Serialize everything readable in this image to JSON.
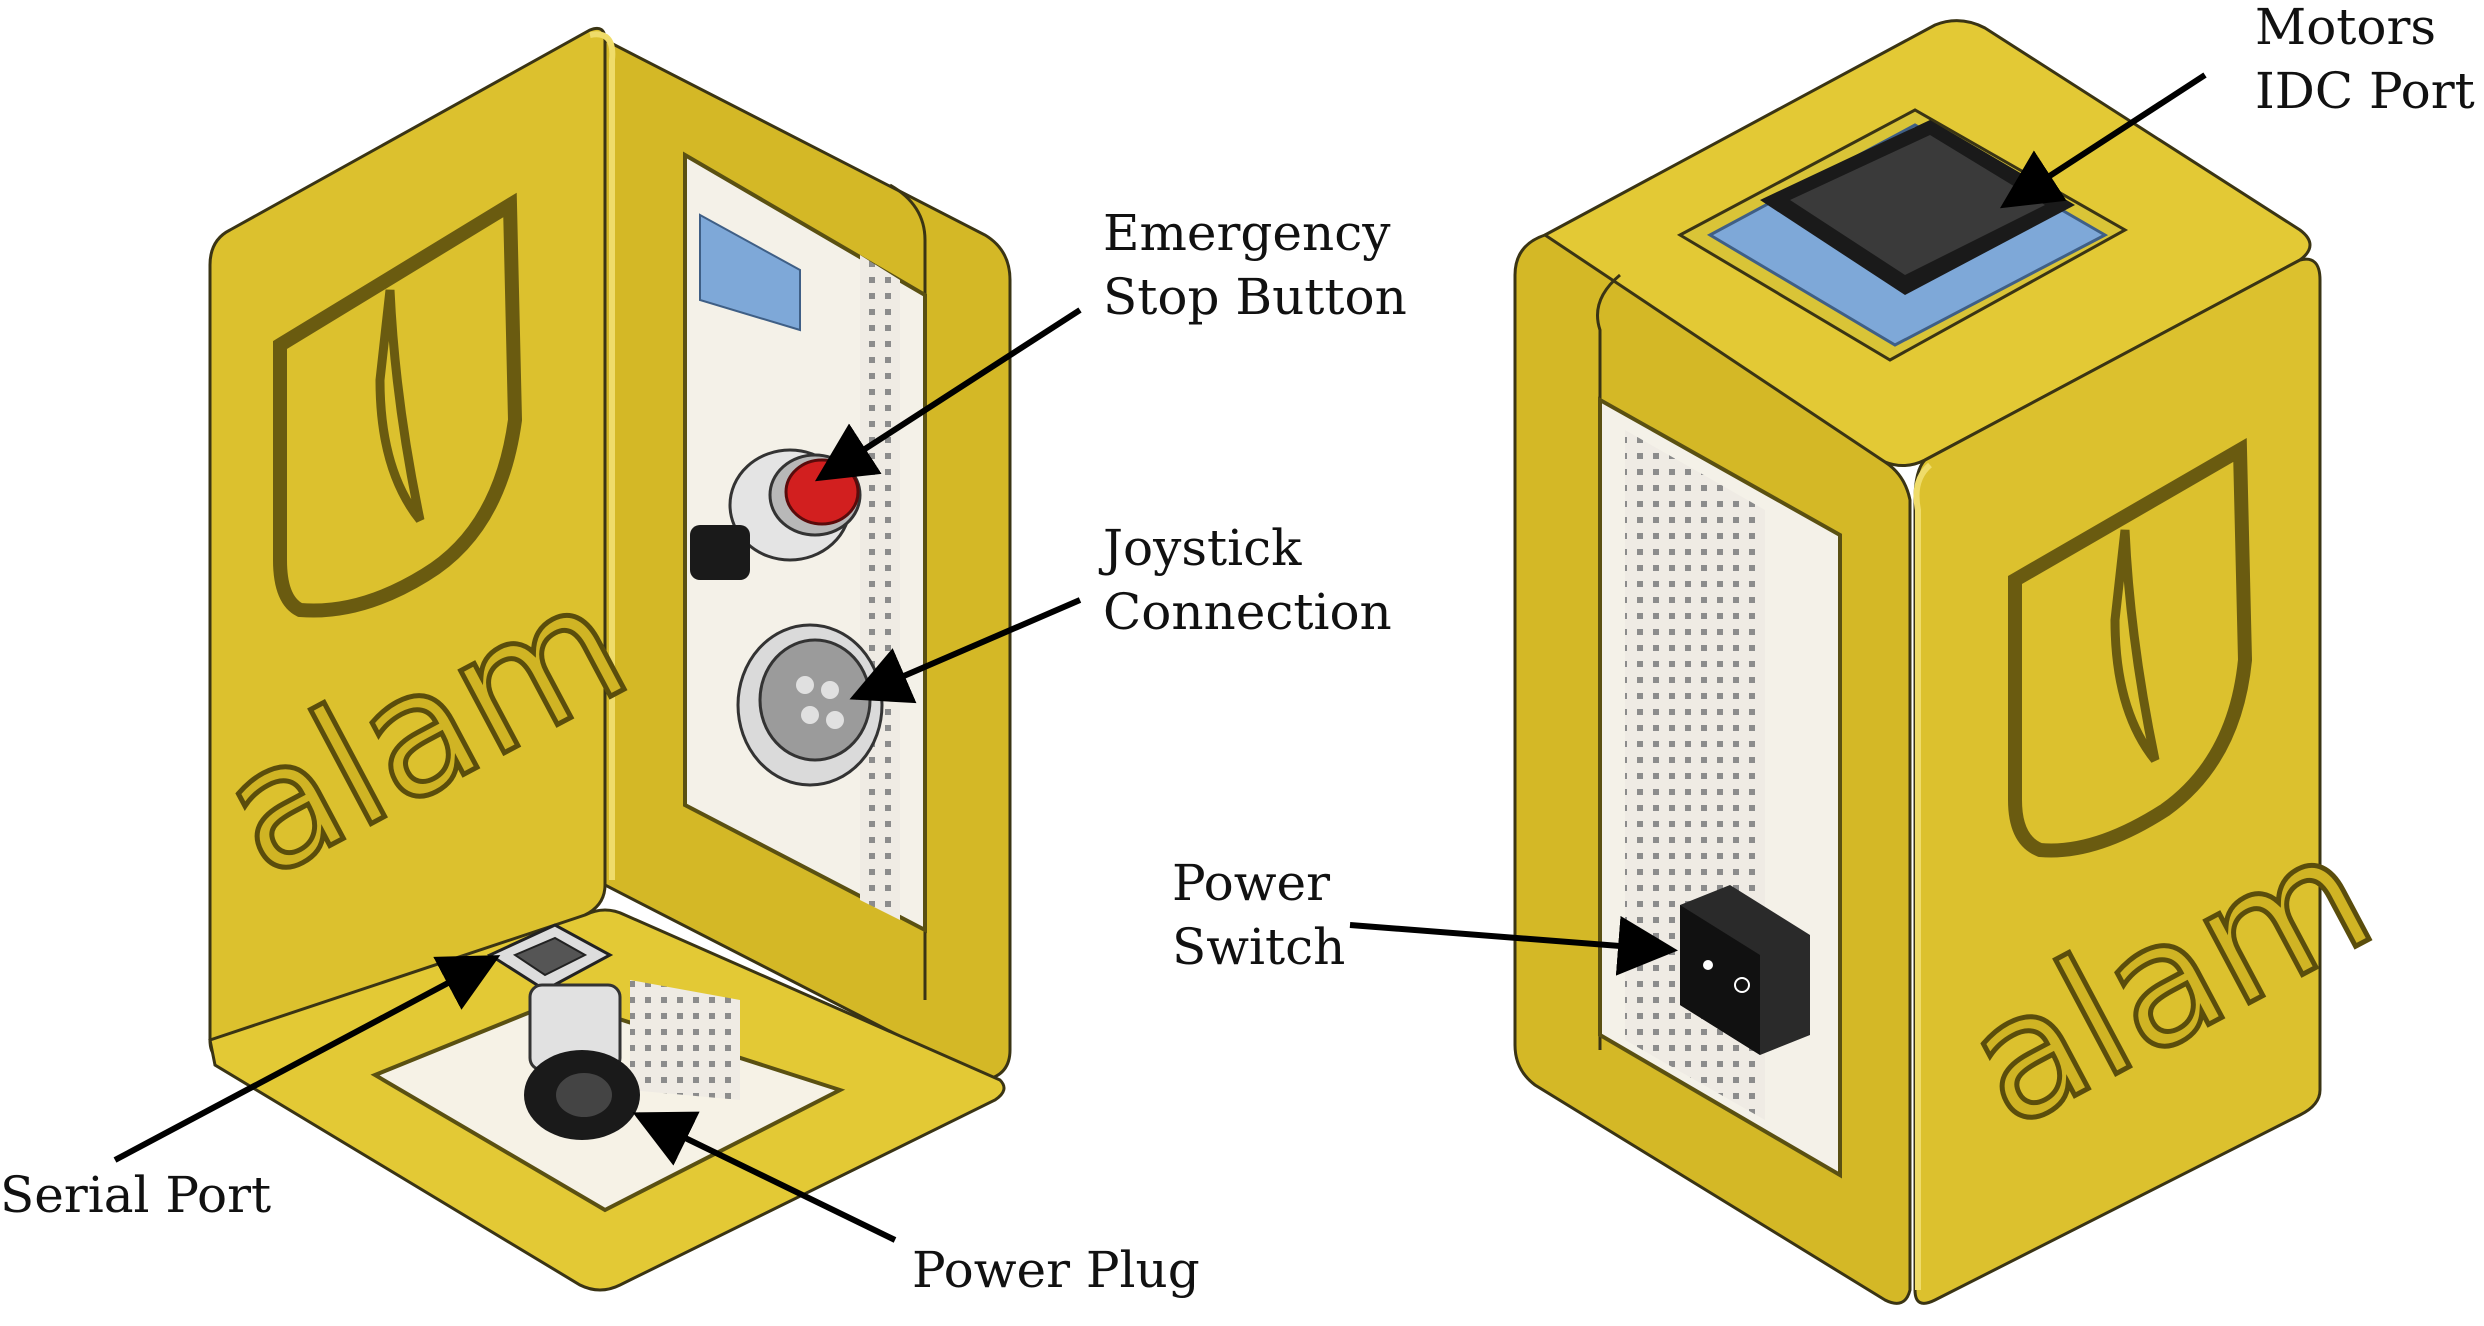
{
  "labels": {
    "emergency_stop": [
      "Emergency",
      "Stop Button"
    ],
    "joystick": [
      "Joystick",
      "Connection"
    ],
    "serial_port": [
      "Serial Port"
    ],
    "power_plug": [
      "Power Plug"
    ],
    "motors_idc": [
      "Motors",
      "IDC Port"
    ],
    "power_switch": [
      "Power",
      "Switch"
    ]
  },
  "logo": {
    "text": "alam"
  },
  "colors": {
    "housing": "#dcc12e",
    "housing_dark": "#b59c17",
    "housing_light": "#e7d04a",
    "window": "#f3eee0",
    "breadboard": "#eeeae3",
    "button_red": "#d21f1f",
    "connector_black": "#1a1a1a",
    "pcb_blue": "#7ea8d8",
    "line": "#000000"
  },
  "icons": [
    "emergency-stop-button-icon",
    "joystick-connector-icon",
    "usb-serial-port-icon",
    "dc-power-jack-icon",
    "idc-header-icon",
    "rocker-switch-icon"
  ]
}
